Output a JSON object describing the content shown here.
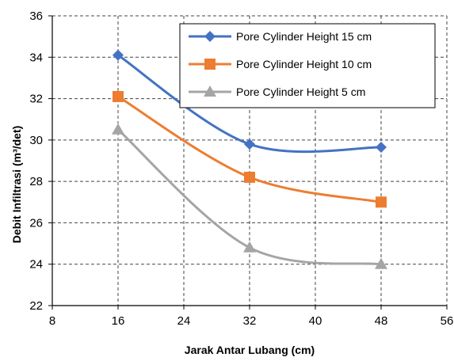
{
  "chart_data": {
    "type": "line",
    "xlabel": "Jarak Antar Lubang (cm)",
    "ylabel": "Debit Infiltrasi (m³/det)",
    "xlim": [
      8,
      56
    ],
    "ylim": [
      22,
      36
    ],
    "x_ticks": [
      8,
      16,
      24,
      32,
      40,
      48,
      56
    ],
    "y_ticks": [
      22,
      24,
      26,
      28,
      30,
      32,
      34,
      36
    ],
    "grid": "dashed",
    "legend_position": "top-right",
    "x": [
      16,
      32,
      48
    ],
    "series": [
      {
        "name": "Pore Cylinder Height 15 cm",
        "values": [
          34.1,
          29.8,
          29.65
        ],
        "color": "#4472C4",
        "marker": "diamond"
      },
      {
        "name": "Pore Cylinder Height 10 cm",
        "values": [
          32.1,
          28.2,
          27.0
        ],
        "color": "#ED7D31",
        "marker": "square"
      },
      {
        "name": "Pore Cylinder Height 5 cm",
        "values": [
          30.5,
          24.8,
          24.0
        ],
        "color": "#A5A5A5",
        "marker": "triangle"
      }
    ]
  }
}
